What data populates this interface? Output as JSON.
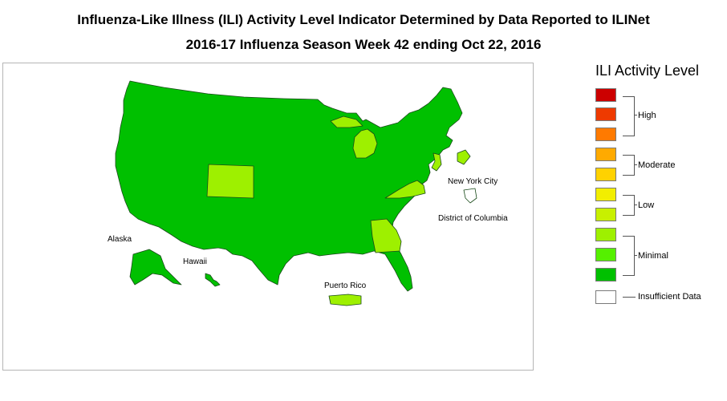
{
  "title_line1": "Influenza-Like Illness (ILI) Activity Level Indicator Determined by Data Reported to ILINet",
  "title_line2": "2016-17 Influenza Season Week 42 ending Oct 22, 2016",
  "map_labels": {
    "alaska": "Alaska",
    "hawaii": "Hawaii",
    "puerto_rico": "Puerto Rico",
    "nyc": "New York City",
    "dc": "District of Columbia"
  },
  "legend": {
    "title": "ILI Activity Level",
    "swatches": [
      {
        "level": 10,
        "color": "#cc0000"
      },
      {
        "level": 9,
        "color": "#ee3a00"
      },
      {
        "level": 8,
        "color": "#ff7a00"
      },
      {
        "level": 7,
        "color": "#ffaa00"
      },
      {
        "level": 6,
        "color": "#ffd200"
      },
      {
        "level": 5,
        "color": "#f2ee00"
      },
      {
        "level": 4,
        "color": "#c8f000"
      },
      {
        "level": 3,
        "color": "#9ef000"
      },
      {
        "level": 2,
        "color": "#55f000"
      },
      {
        "level": 1,
        "color": "#00c000"
      },
      {
        "level": 0,
        "color": "#ffffff"
      }
    ],
    "groups": {
      "high": "High",
      "moderate": "Moderate",
      "low": "Low",
      "minimal": "Minimal",
      "insufficient": "Insufficient Data"
    }
  },
  "map_colors": {
    "minimal_1": "#00c000",
    "minimal_3": "#9ef000",
    "insufficient": "#ffffff",
    "border": "#1a4a1a"
  },
  "regions_minimal_3": [
    "Colorado",
    "Michigan",
    "Virginia",
    "Georgia",
    "New Jersey",
    "Puerto Rico"
  ],
  "regions_insufficient": [
    "District of Columbia"
  ]
}
